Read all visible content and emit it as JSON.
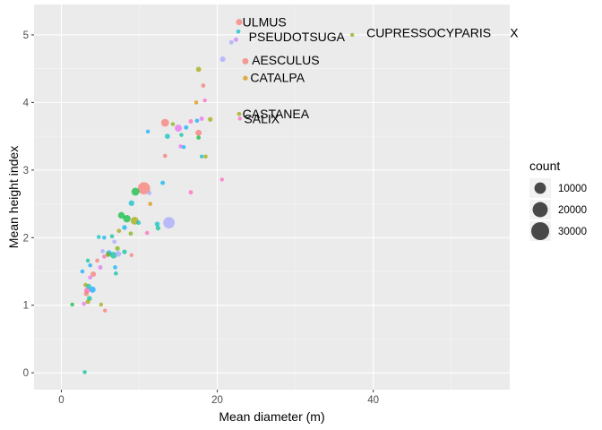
{
  "chart_data": {
    "type": "scatter",
    "title": "",
    "xlabel": "Mean diameter (m)",
    "ylabel": "Mean height index",
    "xlim": [
      -3.5,
      57.5
    ],
    "ylim": [
      -0.25,
      5.45
    ],
    "x_ticks": [
      0,
      20,
      40
    ],
    "y_ticks": [
      0,
      1,
      2,
      3,
      4,
      5
    ],
    "x_tick_labels": [
      "0",
      "20",
      "40"
    ],
    "y_tick_labels": [
      "0",
      "1",
      "2",
      "3",
      "4",
      "5"
    ],
    "grid": true,
    "legend": {
      "title": "count",
      "position": "right",
      "entries": [
        {
          "label": "10000",
          "value": 10000
        },
        {
          "label": "20000",
          "value": 20000
        },
        {
          "label": "30000",
          "value": 30000
        }
      ]
    },
    "labels": [
      {
        "text": "ULMUS",
        "x": 23.0,
        "y": 5.19
      },
      {
        "text": "PSEUDOTSUGA",
        "x": 23.8,
        "y": 4.97
      },
      {
        "text": "AESCULUS",
        "x": 24.2,
        "y": 4.63
      },
      {
        "text": "CATALPA",
        "x": 24.0,
        "y": 4.37
      },
      {
        "text": "CASTANEA",
        "x": 23.0,
        "y": 3.83
      },
      {
        "text": "SALIX",
        "x": 23.2,
        "y": 3.76
      },
      {
        "text": "CUPRESSOCYPARIS",
        "x": 38.9,
        "y": 5.03
      },
      {
        "text": "X",
        "x": 57.3,
        "y": 5.03
      }
    ],
    "points": [
      {
        "x": 22.8,
        "y": 5.19,
        "count": 1600,
        "color": "#F8766D"
      },
      {
        "x": 22.4,
        "y": 4.93,
        "count": 400,
        "color": "#C77CFF"
      },
      {
        "x": 21.8,
        "y": 4.89,
        "count": 400,
        "color": "#A3A5FF"
      },
      {
        "x": 22.7,
        "y": 5.05,
        "count": 300,
        "color": "#00BFC4"
      },
      {
        "x": 23.6,
        "y": 4.61,
        "count": 1600,
        "color": "#F8766D"
      },
      {
        "x": 20.7,
        "y": 4.64,
        "count": 1000,
        "color": "#A3A5FF"
      },
      {
        "x": 23.6,
        "y": 4.36,
        "count": 600,
        "color": "#D89000"
      },
      {
        "x": 37.3,
        "y": 5.0,
        "count": 200,
        "color": "#7CAE00"
      },
      {
        "x": 22.8,
        "y": 3.83,
        "count": 300,
        "color": "#A3A500"
      },
      {
        "x": 22.9,
        "y": 3.76,
        "count": 200,
        "color": "#FF62BC"
      },
      {
        "x": 17.6,
        "y": 4.49,
        "count": 800,
        "color": "#A3A500"
      },
      {
        "x": 18.2,
        "y": 4.25,
        "count": 300,
        "color": "#F8766D"
      },
      {
        "x": 17.3,
        "y": 4.0,
        "count": 250,
        "color": "#D89000"
      },
      {
        "x": 18.4,
        "y": 4.03,
        "count": 200,
        "color": "#FF62BC"
      },
      {
        "x": 18.0,
        "y": 3.76,
        "count": 350,
        "color": "#E76BF3"
      },
      {
        "x": 19.1,
        "y": 3.75,
        "count": 500,
        "color": "#A3A500"
      },
      {
        "x": 17.4,
        "y": 3.73,
        "count": 250,
        "color": "#00A9FF"
      },
      {
        "x": 16.6,
        "y": 3.72,
        "count": 400,
        "color": "#FF62BC"
      },
      {
        "x": 13.3,
        "y": 3.7,
        "count": 3500,
        "color": "#F8766D"
      },
      {
        "x": 14.3,
        "y": 3.68,
        "count": 200,
        "color": "#7CAE00"
      },
      {
        "x": 15.0,
        "y": 3.62,
        "count": 2500,
        "color": "#E76BF3"
      },
      {
        "x": 16.0,
        "y": 3.63,
        "count": 400,
        "color": "#00A9FF"
      },
      {
        "x": 17.6,
        "y": 3.55,
        "count": 1500,
        "color": "#F8766D"
      },
      {
        "x": 15.4,
        "y": 3.52,
        "count": 250,
        "color": "#00C19A"
      },
      {
        "x": 13.6,
        "y": 3.5,
        "count": 800,
        "color": "#00BFC4"
      },
      {
        "x": 17.6,
        "y": 3.48,
        "count": 300,
        "color": "#00BA38"
      },
      {
        "x": 11.1,
        "y": 3.57,
        "count": 200,
        "color": "#00A9FF"
      },
      {
        "x": 15.3,
        "y": 3.35,
        "count": 250,
        "color": "#E76BF3"
      },
      {
        "x": 15.7,
        "y": 3.34,
        "count": 200,
        "color": "#00B0F6"
      },
      {
        "x": 13.3,
        "y": 3.21,
        "count": 300,
        "color": "#F8766D"
      },
      {
        "x": 18.0,
        "y": 3.2,
        "count": 200,
        "color": "#00BFC4"
      },
      {
        "x": 18.5,
        "y": 3.2,
        "count": 250,
        "color": "#A3A500"
      },
      {
        "x": 13.0,
        "y": 2.81,
        "count": 400,
        "color": "#00B0F6"
      },
      {
        "x": 20.6,
        "y": 2.86,
        "count": 200,
        "color": "#FF62BC"
      },
      {
        "x": 10.6,
        "y": 2.73,
        "count": 12000,
        "color": "#F8766D"
      },
      {
        "x": 11.3,
        "y": 2.66,
        "count": 300,
        "color": "#A3A5FF"
      },
      {
        "x": 9.5,
        "y": 2.68,
        "count": 3500,
        "color": "#00BA38"
      },
      {
        "x": 16.6,
        "y": 2.67,
        "count": 350,
        "color": "#FF62BC"
      },
      {
        "x": 9.0,
        "y": 2.51,
        "count": 1200,
        "color": "#00BFC4"
      },
      {
        "x": 11.4,
        "y": 2.5,
        "count": 300,
        "color": "#D89000"
      },
      {
        "x": 7.7,
        "y": 2.33,
        "count": 2000,
        "color": "#00BA38"
      },
      {
        "x": 8.4,
        "y": 2.28,
        "count": 3000,
        "color": "#00BA38"
      },
      {
        "x": 9.4,
        "y": 2.25,
        "count": 3500,
        "color": "#A3A500"
      },
      {
        "x": 9.9,
        "y": 2.22,
        "count": 400,
        "color": "#00BFC4"
      },
      {
        "x": 13.8,
        "y": 2.22,
        "count": 10000,
        "color": "#A3A5FF"
      },
      {
        "x": 12.3,
        "y": 2.2,
        "count": 700,
        "color": "#00BFC4"
      },
      {
        "x": 12.4,
        "y": 2.14,
        "count": 500,
        "color": "#00C19A"
      },
      {
        "x": 8.1,
        "y": 2.15,
        "count": 600,
        "color": "#00B0F6"
      },
      {
        "x": 7.4,
        "y": 2.1,
        "count": 300,
        "color": "#A3A500"
      },
      {
        "x": 8.9,
        "y": 2.06,
        "count": 300,
        "color": "#7CAE00"
      },
      {
        "x": 11.0,
        "y": 2.07,
        "count": 250,
        "color": "#FF62BC"
      },
      {
        "x": 6.5,
        "y": 2.02,
        "count": 300,
        "color": "#00C19A"
      },
      {
        "x": 5.5,
        "y": 2.0,
        "count": 250,
        "color": "#00B0F6"
      },
      {
        "x": 4.8,
        "y": 2.01,
        "count": 250,
        "color": "#00BFC4"
      },
      {
        "x": 6.8,
        "y": 1.94,
        "count": 300,
        "color": "#A3A5FF"
      },
      {
        "x": 7.2,
        "y": 1.84,
        "count": 500,
        "color": "#7CAE00"
      },
      {
        "x": 8.1,
        "y": 1.79,
        "count": 500,
        "color": "#00C19A"
      },
      {
        "x": 6.1,
        "y": 1.77,
        "count": 1200,
        "color": "#00B0F6"
      },
      {
        "x": 6.7,
        "y": 1.74,
        "count": 2000,
        "color": "#00C19A"
      },
      {
        "x": 7.3,
        "y": 1.76,
        "count": 1200,
        "color": "#A3A5FF"
      },
      {
        "x": 6.0,
        "y": 1.75,
        "count": 700,
        "color": "#7CAE00"
      },
      {
        "x": 5.3,
        "y": 1.8,
        "count": 300,
        "color": "#A3A5FF"
      },
      {
        "x": 9.0,
        "y": 1.74,
        "count": 200,
        "color": "#F8766D"
      },
      {
        "x": 5.5,
        "y": 1.72,
        "count": 250,
        "color": "#FF62BC"
      },
      {
        "x": 4.6,
        "y": 1.66,
        "count": 250,
        "color": "#F8766D"
      },
      {
        "x": 3.4,
        "y": 1.66,
        "count": 250,
        "color": "#00C19A"
      },
      {
        "x": 3.7,
        "y": 1.59,
        "count": 250,
        "color": "#00A9FF"
      },
      {
        "x": 6.9,
        "y": 1.56,
        "count": 300,
        "color": "#00B0F6"
      },
      {
        "x": 5.0,
        "y": 1.56,
        "count": 400,
        "color": "#E76BF3"
      },
      {
        "x": 2.7,
        "y": 1.5,
        "count": 250,
        "color": "#00A9FF"
      },
      {
        "x": 4.1,
        "y": 1.46,
        "count": 1000,
        "color": "#F8766D"
      },
      {
        "x": 7.0,
        "y": 1.47,
        "count": 300,
        "color": "#00C19A"
      },
      {
        "x": 3.7,
        "y": 1.41,
        "count": 250,
        "color": "#E76BF3"
      },
      {
        "x": 3.1,
        "y": 1.3,
        "count": 300,
        "color": "#A3A500"
      },
      {
        "x": 3.5,
        "y": 1.28,
        "count": 800,
        "color": "#00BFC4"
      },
      {
        "x": 3.3,
        "y": 1.22,
        "count": 1200,
        "color": "#FF62BC"
      },
      {
        "x": 4.0,
        "y": 1.23,
        "count": 1600,
        "color": "#00A9FF"
      },
      {
        "x": 3.2,
        "y": 1.17,
        "count": 600,
        "color": "#F8766D"
      },
      {
        "x": 3.6,
        "y": 1.1,
        "count": 700,
        "color": "#00C19A"
      },
      {
        "x": 3.4,
        "y": 1.05,
        "count": 500,
        "color": "#A3A500"
      },
      {
        "x": 2.9,
        "y": 1.02,
        "count": 250,
        "color": "#E76BF3"
      },
      {
        "x": 1.4,
        "y": 1.01,
        "count": 200,
        "color": "#00BA38"
      },
      {
        "x": 5.1,
        "y": 1.01,
        "count": 200,
        "color": "#A3A500"
      },
      {
        "x": 5.6,
        "y": 0.92,
        "count": 200,
        "color": "#F8766D"
      },
      {
        "x": 3.0,
        "y": 0.01,
        "count": 250,
        "color": "#00C19A"
      }
    ]
  }
}
